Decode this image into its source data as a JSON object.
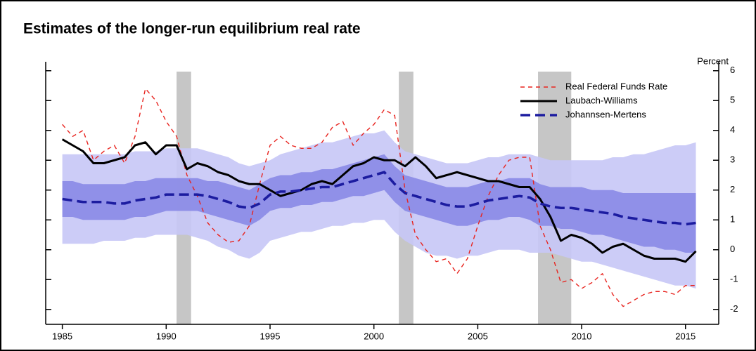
{
  "chart_data": {
    "type": "line",
    "title": "Estimates of the longer-run equilibrium real rate",
    "y_label": "Percent",
    "legend": "upper right",
    "x": [
      1985,
      1985.5,
      1986,
      1986.5,
      1987,
      1987.5,
      1988,
      1988.5,
      1989,
      1989.5,
      1990,
      1990.5,
      1991,
      1991.5,
      1992,
      1992.5,
      1993,
      1993.5,
      1994,
      1994.5,
      1995,
      1995.5,
      1996,
      1996.5,
      1997,
      1997.5,
      1998,
      1998.5,
      1999,
      1999.5,
      2000,
      2000.5,
      2001,
      2001.5,
      2002,
      2002.5,
      2003,
      2003.5,
      2004,
      2004.5,
      2005,
      2005.5,
      2006,
      2006.5,
      2007,
      2007.5,
      2008,
      2008.5,
      2009,
      2009.5,
      2010,
      2010.5,
      2011,
      2011.5,
      2012,
      2012.5,
      2013,
      2013.5,
      2014,
      2014.5,
      2015,
      2015.5
    ],
    "xlim": [
      1984.2,
      2016.6
    ],
    "xticks": [
      1985,
      1990,
      1995,
      2000,
      2005,
      2010,
      2015
    ],
    "ylim": [
      -2.5,
      6.3
    ],
    "yticks": [
      -2,
      -1,
      0,
      1,
      2,
      3,
      4,
      5,
      6
    ],
    "recessions": {
      "color": "#c6c6c6",
      "spans": [
        [
          1990.5,
          1991.2
        ],
        [
          2001.2,
          2001.9
        ],
        [
          2007.9,
          2009.5
        ]
      ]
    },
    "bands": [
      {
        "color": "#c6c6f6",
        "upper": [
          3.2,
          3.2,
          3.2,
          3.2,
          3.2,
          3.2,
          3.2,
          3.3,
          3.3,
          3.3,
          3.4,
          3.4,
          3.4,
          3.4,
          3.3,
          3.2,
          3.1,
          2.9,
          2.8,
          2.9,
          3.0,
          3.2,
          3.3,
          3.4,
          3.5,
          3.6,
          3.6,
          3.7,
          3.8,
          3.9,
          3.9,
          4.0,
          3.6,
          3.3,
          3.2,
          3.1,
          3.0,
          2.9,
          2.9,
          2.9,
          3.0,
          3.1,
          3.1,
          3.2,
          3.2,
          3.2,
          3.1,
          3.0,
          3.0,
          3.0,
          3.0,
          3.0,
          3.0,
          3.1,
          3.1,
          3.2,
          3.2,
          3.3,
          3.4,
          3.5,
          3.5,
          3.6
        ],
        "lower": [
          0.2,
          0.2,
          0.2,
          0.2,
          0.3,
          0.3,
          0.3,
          0.4,
          0.4,
          0.5,
          0.5,
          0.5,
          0.5,
          0.4,
          0.3,
          0.1,
          0.0,
          -0.2,
          -0.3,
          -0.1,
          0.3,
          0.4,
          0.5,
          0.6,
          0.6,
          0.7,
          0.8,
          0.8,
          0.9,
          0.9,
          1.0,
          1.0,
          0.6,
          0.3,
          0.1,
          -0.1,
          -0.2,
          -0.2,
          -0.3,
          -0.2,
          -0.2,
          -0.1,
          0.0,
          0.0,
          0.0,
          -0.1,
          -0.1,
          -0.1,
          -0.2,
          -0.3,
          -0.4,
          -0.4,
          -0.5,
          -0.6,
          -0.7,
          -0.8,
          -0.9,
          -1.0,
          -1.1,
          -1.2,
          -1.2,
          -1.3
        ]
      },
      {
        "color": "#8a8ae6",
        "upper": [
          2.3,
          2.3,
          2.2,
          2.2,
          2.2,
          2.2,
          2.2,
          2.3,
          2.3,
          2.4,
          2.4,
          2.4,
          2.4,
          2.4,
          2.3,
          2.3,
          2.2,
          2.1,
          2.0,
          2.2,
          2.4,
          2.5,
          2.5,
          2.6,
          2.6,
          2.7,
          2.7,
          2.8,
          2.9,
          3.0,
          3.1,
          3.2,
          2.8,
          2.5,
          2.4,
          2.3,
          2.2,
          2.1,
          2.1,
          2.1,
          2.2,
          2.3,
          2.3,
          2.4,
          2.4,
          2.4,
          2.2,
          2.1,
          2.1,
          2.1,
          2.1,
          2.0,
          2.0,
          2.0,
          1.9,
          1.9,
          1.9,
          1.9,
          1.9,
          1.9,
          1.9,
          1.9
        ],
        "lower": [
          1.1,
          1.1,
          1.0,
          1.0,
          1.0,
          1.0,
          1.0,
          1.1,
          1.1,
          1.2,
          1.3,
          1.3,
          1.3,
          1.3,
          1.2,
          1.1,
          1.0,
          0.9,
          0.8,
          1.0,
          1.3,
          1.4,
          1.4,
          1.5,
          1.5,
          1.6,
          1.6,
          1.7,
          1.8,
          1.8,
          1.9,
          2.0,
          1.6,
          1.3,
          1.2,
          1.1,
          1.0,
          0.9,
          0.8,
          0.8,
          0.9,
          1.0,
          1.0,
          1.1,
          1.1,
          1.0,
          0.8,
          0.8,
          0.7,
          0.7,
          0.6,
          0.5,
          0.5,
          0.4,
          0.3,
          0.2,
          0.1,
          0.1,
          0.0,
          0.0,
          -0.1,
          -0.1
        ]
      }
    ],
    "series": [
      {
        "name": "Real Federal Funds Rate",
        "color": "#e8241f",
        "dash": "dashed",
        "values": [
          4.2,
          3.8,
          4.0,
          3.0,
          3.3,
          3.5,
          2.9,
          3.8,
          5.4,
          5.0,
          4.3,
          3.8,
          2.5,
          1.8,
          0.9,
          0.5,
          0.25,
          0.3,
          0.8,
          2.2,
          3.5,
          3.8,
          3.5,
          3.4,
          3.4,
          3.6,
          4.1,
          4.3,
          3.5,
          3.9,
          4.2,
          4.7,
          4.5,
          2.0,
          0.5,
          0.0,
          -0.4,
          -0.3,
          -0.8,
          -0.3,
          0.8,
          1.8,
          2.5,
          3.0,
          3.1,
          3.1,
          0.8,
          0.0,
          -1.1,
          -1.0,
          -1.3,
          -1.1,
          -0.8,
          -1.5,
          -1.9,
          -1.7,
          -1.5,
          -1.4,
          -1.4,
          -1.5,
          -1.2,
          -1.2
        ]
      },
      {
        "name": "Laubach-Williams",
        "color": "#000000",
        "dash": "solid",
        "values": [
          3.7,
          3.5,
          3.3,
          2.9,
          2.9,
          3.0,
          3.1,
          3.5,
          3.6,
          3.2,
          3.5,
          3.5,
          2.7,
          2.9,
          2.8,
          2.6,
          2.5,
          2.3,
          2.2,
          2.2,
          2.0,
          1.8,
          1.9,
          2.0,
          2.2,
          2.3,
          2.2,
          2.5,
          2.8,
          2.9,
          3.1,
          3.0,
          3.0,
          2.8,
          3.1,
          2.8,
          2.4,
          2.5,
          2.6,
          2.5,
          2.4,
          2.3,
          2.3,
          2.2,
          2.1,
          2.1,
          1.7,
          1.1,
          0.3,
          0.5,
          0.4,
          0.2,
          -0.1,
          0.1,
          0.2,
          0.0,
          -0.2,
          -0.3,
          -0.3,
          -0.3,
          -0.4,
          -0.05
        ]
      },
      {
        "name": "Johannsen-Mertens",
        "color": "#1c1ca0",
        "dash": "dashed",
        "values": [
          1.7,
          1.65,
          1.6,
          1.6,
          1.6,
          1.55,
          1.55,
          1.65,
          1.7,
          1.75,
          1.85,
          1.85,
          1.85,
          1.85,
          1.8,
          1.7,
          1.6,
          1.45,
          1.4,
          1.55,
          1.85,
          1.95,
          1.95,
          2.0,
          2.05,
          2.1,
          2.1,
          2.2,
          2.3,
          2.4,
          2.5,
          2.6,
          2.2,
          1.9,
          1.8,
          1.7,
          1.6,
          1.5,
          1.45,
          1.45,
          1.55,
          1.65,
          1.7,
          1.75,
          1.8,
          1.75,
          1.55,
          1.45,
          1.4,
          1.4,
          1.35,
          1.3,
          1.25,
          1.2,
          1.1,
          1.05,
          1.0,
          0.95,
          0.9,
          0.9,
          0.85,
          0.9
        ]
      }
    ]
  }
}
